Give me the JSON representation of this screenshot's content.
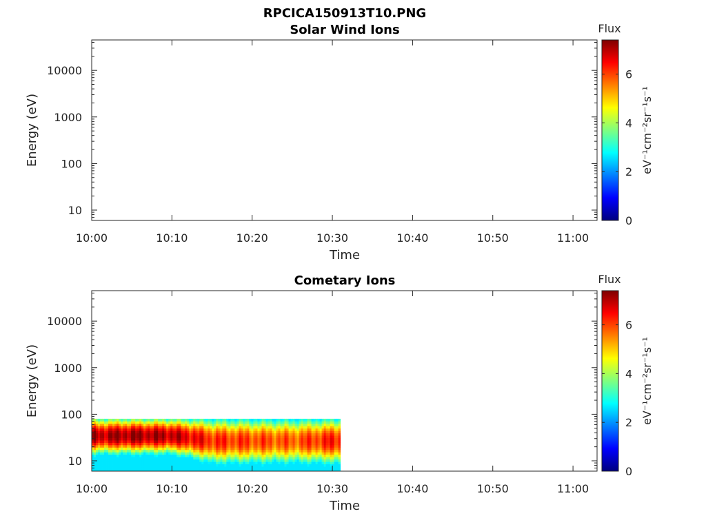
{
  "figure": {
    "title": "RPCICA150913T10.PNG"
  },
  "colors": {
    "frame": "#262626",
    "colormap": [
      "#00007f",
      "#0000ff",
      "#007fff",
      "#00ffff",
      "#7fff7f",
      "#ffff00",
      "#ff7f00",
      "#ff0000",
      "#7f0000"
    ]
  },
  "chart_data": [
    {
      "type": "heatmap",
      "title": "Solar Wind Ions",
      "xlabel": "Time",
      "ylabel": "Energy (eV)",
      "y_scale": "log",
      "ylim": [
        6,
        45000
      ],
      "xlim": [
        "10:00",
        "11:03"
      ],
      "x_ticks": [
        "10:00",
        "10:10",
        "10:20",
        "10:30",
        "10:40",
        "10:50",
        "11:00"
      ],
      "y_ticks": [
        "10",
        "100",
        "1000",
        "10000"
      ],
      "colorbar": {
        "title": "Flux",
        "label": "eV⁻¹cm⁻²sr⁻¹s⁻¹",
        "range": [
          0,
          7.4
        ],
        "ticks": [
          "0",
          "2",
          "4",
          "6"
        ]
      },
      "data": []
    },
    {
      "type": "heatmap",
      "title": "Cometary Ions",
      "xlabel": "Time",
      "ylabel": "Energy (eV)",
      "y_scale": "log",
      "ylim": [
        6,
        45000
      ],
      "xlim": [
        "10:00",
        "11:03"
      ],
      "x_ticks": [
        "10:00",
        "10:10",
        "10:20",
        "10:30",
        "10:40",
        "10:50",
        "11:00"
      ],
      "y_ticks": [
        "10",
        "100",
        "1000",
        "10000"
      ],
      "colorbar": {
        "title": "Flux",
        "label": "eV⁻¹cm⁻²sr⁻¹s⁻¹",
        "range": [
          0,
          7.4
        ],
        "ticks": [
          "0",
          "2",
          "4",
          "6"
        ]
      },
      "data_extent": {
        "time": [
          "10:00",
          "10:31"
        ],
        "energy_eV": [
          6,
          80
        ]
      },
      "data_profile": [
        {
          "time": "10:00",
          "peak_flux": 7.0,
          "band_eV": [
            20,
            60
          ]
        },
        {
          "time": "10:05",
          "peak_flux": 7.2,
          "band_eV": [
            20,
            60
          ]
        },
        {
          "time": "10:10",
          "peak_flux": 7.0,
          "band_eV": [
            20,
            60
          ]
        },
        {
          "time": "10:15",
          "peak_flux": 6.2,
          "band_eV": [
            12,
            60
          ]
        },
        {
          "time": "10:20",
          "peak_flux": 6.0,
          "band_eV": [
            12,
            60
          ]
        },
        {
          "time": "10:25",
          "peak_flux": 5.8,
          "band_eV": [
            12,
            60
          ]
        },
        {
          "time": "10:30",
          "peak_flux": 6.3,
          "band_eV": [
            12,
            60
          ]
        }
      ]
    }
  ]
}
